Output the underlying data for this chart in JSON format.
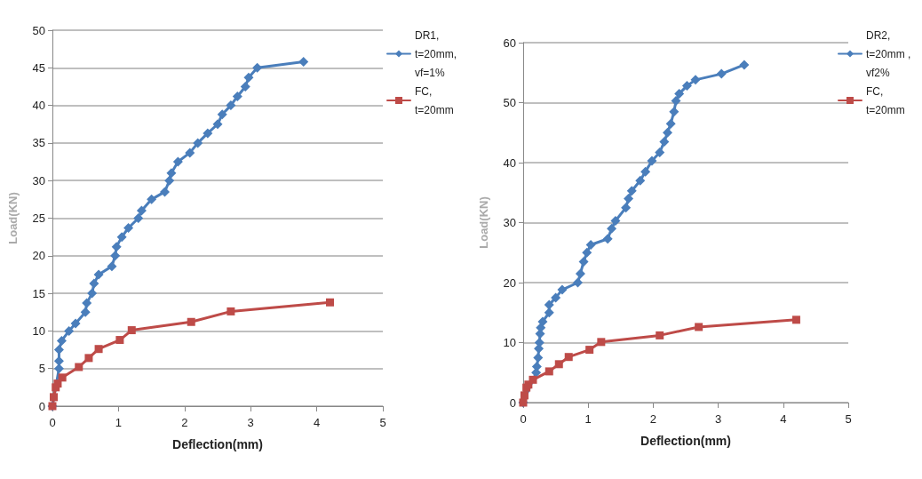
{
  "chart_data": [
    {
      "type": "line",
      "xlabel": "Deflection(mm)",
      "ylabel": "Load(KN)",
      "xlim": [
        0,
        5
      ],
      "xticks": [
        0,
        1,
        2,
        3,
        4,
        5
      ],
      "ylim": [
        0,
        50
      ],
      "yticks": [
        0,
        5,
        10,
        15,
        20,
        25,
        30,
        35,
        40,
        45,
        50
      ],
      "grid": "y",
      "legend": "top right",
      "line_style": "solid",
      "series": [
        {
          "name": "DR1, t=20mm, vf=1%",
          "color": "#4a7ebb",
          "marker": "diamond",
          "x": [
            0,
            0.1,
            0.1,
            0.1,
            0.14,
            0.25,
            0.35,
            0.5,
            0.52,
            0.6,
            0.63,
            0.7,
            0.9,
            0.95,
            0.97,
            1.05,
            1.15,
            1.3,
            1.35,
            1.5,
            1.7,
            1.77,
            1.8,
            1.9,
            2.08,
            2.2,
            2.35,
            2.5,
            2.57,
            2.7,
            2.8,
            2.92,
            2.97,
            3.1,
            3.8
          ],
          "values": [
            0,
            5,
            6,
            7.5,
            8.7,
            10,
            11,
            12.5,
            13.7,
            15,
            16.3,
            17.5,
            18.6,
            20,
            21.2,
            22.5,
            23.7,
            25,
            26,
            27.5,
            28.5,
            30,
            31,
            32.5,
            33.7,
            35,
            36.3,
            37.5,
            38.8,
            40,
            41.2,
            42.5,
            43.7,
            45,
            45.8
          ]
        },
        {
          "name": "FC, t=20mm",
          "color": "#be4b48",
          "marker": "square",
          "x": [
            0,
            0.02,
            0.05,
            0.08,
            0.15,
            0.4,
            0.55,
            0.7,
            1.02,
            1.2,
            2.1,
            2.7,
            4.2
          ],
          "values": [
            0,
            1.2,
            2.5,
            3,
            3.8,
            5.2,
            6.4,
            7.6,
            8.8,
            10.1,
            11.2,
            12.6,
            13.8
          ]
        }
      ]
    },
    {
      "type": "line",
      "xlabel": "Deflection(mm)",
      "ylabel": "Load(KN)",
      "xlim": [
        0,
        5
      ],
      "xticks": [
        0,
        1,
        2,
        3,
        4,
        5
      ],
      "ylim": [
        0,
        60
      ],
      "yticks": [
        0,
        10,
        20,
        30,
        40,
        50,
        60
      ],
      "grid": "y",
      "legend": "top right",
      "line_style": "solid",
      "series": [
        {
          "name": "DR2, t=20mm ,vf2%",
          "color": "#4a7ebb",
          "marker": "diamond",
          "x": [
            0,
            0.2,
            0.21,
            0.23,
            0.24,
            0.25,
            0.26,
            0.27,
            0.3,
            0.4,
            0.4,
            0.5,
            0.6,
            0.84,
            0.88,
            0.93,
            0.98,
            1.04,
            1.3,
            1.36,
            1.42,
            1.58,
            1.62,
            1.67,
            1.8,
            1.88,
            1.98,
            2.1,
            2.17,
            2.22,
            2.27,
            2.32,
            2.35,
            2.4,
            2.52,
            2.65,
            3.05,
            3.4
          ],
          "values": [
            0,
            5,
            6,
            7.5,
            9,
            10,
            11.5,
            12.5,
            13.5,
            15,
            16.3,
            17.5,
            18.8,
            20,
            21.5,
            23.5,
            25,
            26.3,
            27.3,
            29,
            30.3,
            32.5,
            34,
            35.3,
            37,
            38.5,
            40.3,
            41.7,
            43.5,
            45,
            46.5,
            48.5,
            50.3,
            51.5,
            52.8,
            53.8,
            54.8,
            56.3
          ]
        },
        {
          "name": "FC, t=20mm",
          "color": "#be4b48",
          "marker": "square",
          "x": [
            0,
            0.02,
            0.05,
            0.08,
            0.15,
            0.4,
            0.55,
            0.7,
            1.02,
            1.2,
            2.1,
            2.7,
            4.2
          ],
          "values": [
            0,
            1.2,
            2.5,
            3,
            3.8,
            5.2,
            6.4,
            7.6,
            8.8,
            10.1,
            11.2,
            12.6,
            13.8
          ]
        }
      ]
    }
  ]
}
